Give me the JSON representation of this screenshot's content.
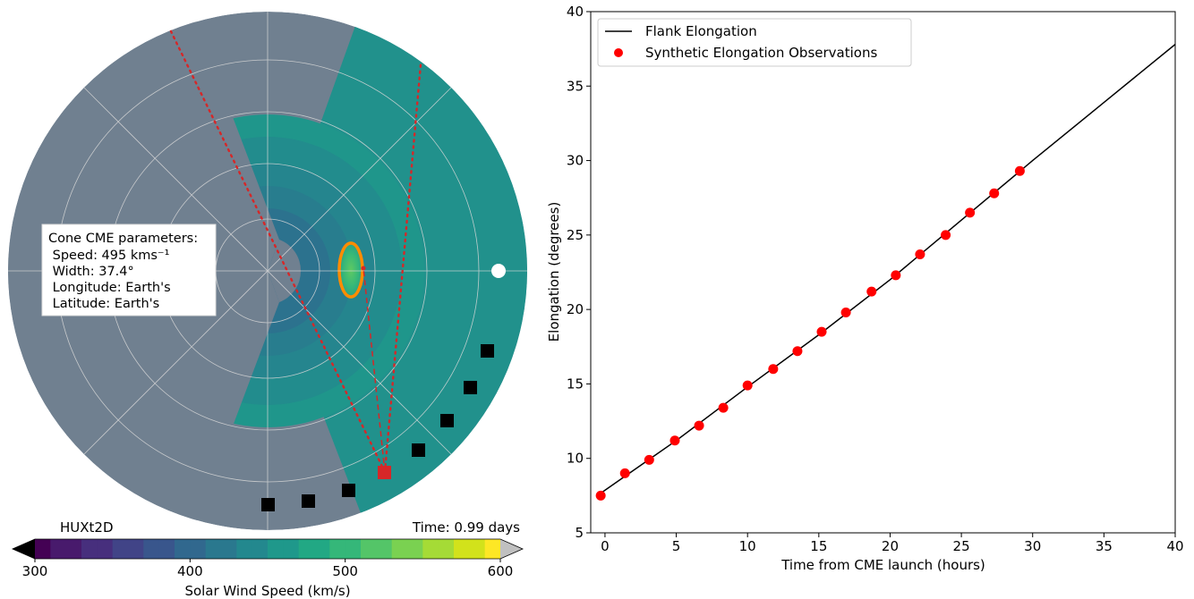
{
  "polar_panel": {
    "model_label": "HUXt2D",
    "time_label": "Time: 0.99 days",
    "info_box": {
      "lines": [
        "Cone CME parameters:",
        " Speed: 495 kms⁻¹",
        " Width: 37.4°",
        " Longitude: Earth's",
        " Latitude: Earth's"
      ]
    },
    "colors": {
      "background_wind": "#708090",
      "fast_wind": "#21918c",
      "cme_boundary": "#ff8c00",
      "observer_marker": "#d62728",
      "earth_marker": "#ffffff",
      "spacecraft_markers": "#000000"
    },
    "colorbar": {
      "ticks": [
        "300",
        "400",
        "500",
        "600"
      ],
      "range": [
        300,
        600
      ],
      "label": "Solar Wind Speed (km/s)",
      "colormap": "viridis",
      "extend": "both",
      "under_color": "#000000",
      "over_color": "#c0c0c0"
    }
  },
  "chart_data": {
    "type": "line",
    "title": "",
    "xlabel": "Time from CME launch (hours)",
    "ylabel": "Elongation (degrees)",
    "xlim": [
      -1,
      40
    ],
    "ylim": [
      5,
      40
    ],
    "xticks": [
      "0",
      "5",
      "10",
      "15",
      "20",
      "25",
      "30",
      "35",
      "40"
    ],
    "yticks": [
      "5",
      "10",
      "15",
      "20",
      "25",
      "30",
      "35",
      "40"
    ],
    "legend_position": "top-left",
    "grid": false,
    "series": [
      {
        "name": "Flank Elongation",
        "style": "line",
        "color": "#000000",
        "x": [
          -0.4,
          5,
          10,
          15,
          20,
          25,
          30,
          35,
          40
        ],
        "y": [
          7.6,
          11.2,
          14.8,
          18.3,
          22.0,
          26.0,
          30.0,
          33.9,
          37.8
        ]
      },
      {
        "name": "Synthetic Elongation Observations",
        "style": "scatter",
        "color": "#ff0000",
        "x": [
          -0.3,
          1.4,
          3.1,
          4.9,
          6.6,
          8.3,
          10.0,
          11.8,
          13.5,
          15.2,
          16.9,
          18.7,
          20.4,
          22.1,
          23.9,
          25.6,
          27.3,
          29.1
        ],
        "y": [
          7.5,
          9.0,
          9.9,
          11.2,
          12.2,
          13.4,
          14.9,
          16.0,
          17.2,
          18.5,
          19.8,
          21.2,
          22.3,
          23.7,
          25.0,
          26.5,
          27.8,
          29.3
        ]
      }
    ]
  }
}
